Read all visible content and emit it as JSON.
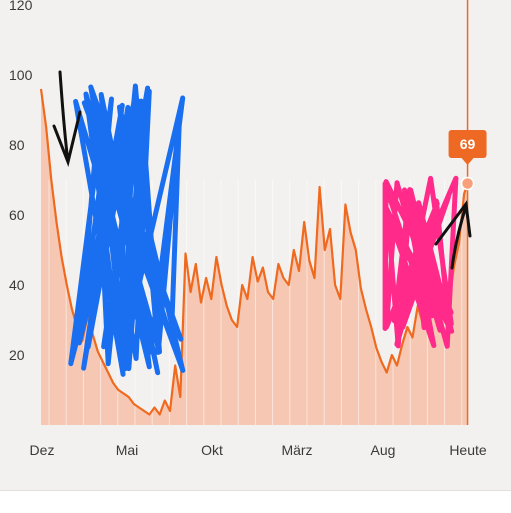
{
  "chart_data": {
    "type": "area",
    "title": "",
    "xlabel": "",
    "ylabel": "",
    "ylim": [
      0,
      120
    ],
    "yticks": [
      20,
      40,
      60,
      80,
      100,
      120
    ],
    "x_tick_labels": [
      "Dez",
      "Mai",
      "Okt",
      "März",
      "Aug",
      "Heute"
    ],
    "xlim": [
      0,
      25
    ],
    "grid": false,
    "legend": "none",
    "colors": {
      "line": "#ef6a1f",
      "fill": "#f6c7b2",
      "fill_bars": "#f8d5c3",
      "badge": "#ee6a24",
      "highlight_point": "#f7a07a"
    },
    "current": {
      "label": "69",
      "value": 69,
      "x": 24.8
    },
    "series": [
      {
        "x": [
          0.0,
          0.3,
          0.6,
          0.9,
          1.2,
          1.5,
          1.8,
          2.1,
          2.4,
          2.7,
          3.0,
          3.3,
          3.6,
          3.9,
          4.2,
          4.5,
          4.8,
          5.1,
          5.4,
          5.7,
          6.0,
          6.3,
          6.6,
          6.9,
          7.2,
          7.5,
          7.8,
          8.1,
          8.4,
          8.7,
          9.0,
          9.3,
          9.6,
          9.9,
          10.2,
          10.5,
          10.8,
          11.1,
          11.4,
          11.7,
          12.0,
          12.3,
          12.6,
          12.9,
          13.2,
          13.5,
          13.8,
          14.1,
          14.4,
          14.7,
          15.0,
          15.3,
          15.6,
          15.9,
          16.2,
          16.5,
          16.8,
          17.1,
          17.4,
          17.7,
          18.0,
          18.3,
          18.6,
          18.9,
          19.2,
          19.5,
          19.8,
          20.1,
          20.4,
          20.7,
          21.0,
          21.3,
          21.6,
          21.9,
          22.2,
          22.5,
          22.8,
          23.1,
          23.4,
          23.7,
          24.0,
          24.3,
          24.6,
          24.8
        ],
        "values": [
          96,
          85,
          70,
          58,
          48,
          40,
          33,
          28,
          24,
          31,
          26,
          21,
          18,
          15,
          12,
          10,
          9,
          8,
          6,
          5,
          4,
          3,
          5,
          3,
          7,
          4,
          17,
          8,
          49,
          38,
          46,
          35,
          42,
          36,
          48,
          40,
          34,
          30,
          28,
          40,
          36,
          48,
          41,
          45,
          38,
          36,
          46,
          42,
          40,
          50,
          44,
          58,
          47,
          42,
          68,
          50,
          56,
          40,
          36,
          63,
          55,
          50,
          39,
          33,
          28,
          22,
          18,
          15,
          20,
          17,
          23,
          28,
          25,
          34,
          29,
          32,
          38,
          35,
          40,
          34,
          45,
          52,
          66,
          69
        ]
      }
    ]
  }
}
